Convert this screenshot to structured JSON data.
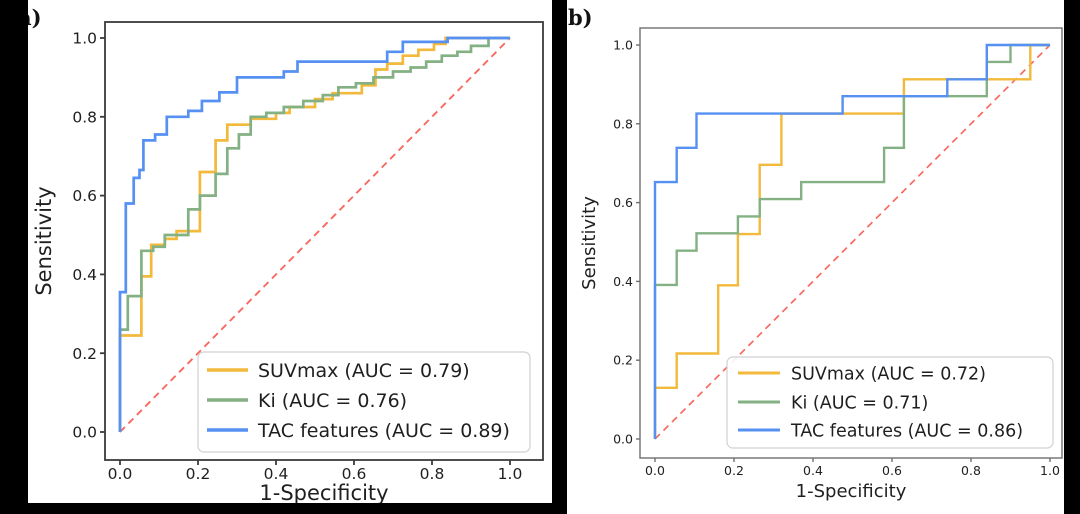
{
  "figure": {
    "background": "#ffffff",
    "crop_bar_color": "#000000",
    "text_color": "#1f1f1f"
  },
  "chart_data": [
    {
      "type": "line",
      "subtype": "roc",
      "panel_label": "a)",
      "xlabel": "1-Specificity",
      "ylabel": "Sensitivity",
      "xlim": [
        0.0,
        1.0
      ],
      "ylim": [
        0.0,
        1.0
      ],
      "grid": false,
      "legend_position": "lower right",
      "tick_values": [
        0.0,
        0.2,
        0.4,
        0.6,
        0.8,
        1.0
      ],
      "xtick_labels": [
        "0.0",
        "0.2",
        "0.4",
        "0.6",
        "0.8",
        "1.0"
      ],
      "ytick_labels": [
        "0.0",
        "0.2",
        "0.4",
        "0.6",
        "0.8",
        "1.0"
      ],
      "diagonal": {
        "name": "chance line",
        "color": "#f8695f",
        "style": "dashed",
        "from": [
          0,
          0
        ],
        "to": [
          1,
          1
        ]
      },
      "series": [
        {
          "name": "SUVmax",
          "auc": 0.79,
          "legend_label": "SUVmax (AUC = 0.79)",
          "color": "#f2b93b",
          "points": [
            [
              0,
              0
            ],
            [
              0,
              0.245
            ],
            [
              0.055,
              0.245
            ],
            [
              0.055,
              0.395
            ],
            [
              0.08,
              0.395
            ],
            [
              0.08,
              0.475
            ],
            [
              0.115,
              0.475
            ],
            [
              0.115,
              0.49
            ],
            [
              0.145,
              0.49
            ],
            [
              0.145,
              0.51
            ],
            [
              0.205,
              0.51
            ],
            [
              0.205,
              0.66
            ],
            [
              0.245,
              0.66
            ],
            [
              0.245,
              0.74
            ],
            [
              0.275,
              0.74
            ],
            [
              0.275,
              0.78
            ],
            [
              0.335,
              0.78
            ],
            [
              0.335,
              0.795
            ],
            [
              0.4,
              0.795
            ],
            [
              0.4,
              0.81
            ],
            [
              0.435,
              0.81
            ],
            [
              0.435,
              0.825
            ],
            [
              0.5,
              0.825
            ],
            [
              0.5,
              0.845
            ],
            [
              0.545,
              0.845
            ],
            [
              0.545,
              0.86
            ],
            [
              0.62,
              0.86
            ],
            [
              0.62,
              0.88
            ],
            [
              0.655,
              0.88
            ],
            [
              0.655,
              0.92
            ],
            [
              0.685,
              0.92
            ],
            [
              0.685,
              0.935
            ],
            [
              0.725,
              0.935
            ],
            [
              0.725,
              0.955
            ],
            [
              0.765,
              0.955
            ],
            [
              0.765,
              0.97
            ],
            [
              0.805,
              0.97
            ],
            [
              0.805,
              0.985
            ],
            [
              0.835,
              0.985
            ],
            [
              0.835,
              1
            ],
            [
              1,
              1
            ]
          ]
        },
        {
          "name": "Ki",
          "auc": 0.76,
          "legend_label": "Ki (AUC = 0.76)",
          "color": "#84b184",
          "points": [
            [
              0,
              0
            ],
            [
              0,
              0.26
            ],
            [
              0.02,
              0.26
            ],
            [
              0.02,
              0.345
            ],
            [
              0.055,
              0.345
            ],
            [
              0.055,
              0.46
            ],
            [
              0.085,
              0.46
            ],
            [
              0.085,
              0.47
            ],
            [
              0.115,
              0.47
            ],
            [
              0.115,
              0.5
            ],
            [
              0.175,
              0.5
            ],
            [
              0.175,
              0.565
            ],
            [
              0.205,
              0.565
            ],
            [
              0.205,
              0.6
            ],
            [
              0.245,
              0.6
            ],
            [
              0.245,
              0.655
            ],
            [
              0.275,
              0.655
            ],
            [
              0.275,
              0.72
            ],
            [
              0.305,
              0.72
            ],
            [
              0.305,
              0.755
            ],
            [
              0.335,
              0.755
            ],
            [
              0.335,
              0.8
            ],
            [
              0.375,
              0.8
            ],
            [
              0.375,
              0.81
            ],
            [
              0.42,
              0.81
            ],
            [
              0.42,
              0.825
            ],
            [
              0.47,
              0.825
            ],
            [
              0.47,
              0.84
            ],
            [
              0.52,
              0.84
            ],
            [
              0.52,
              0.855
            ],
            [
              0.56,
              0.855
            ],
            [
              0.56,
              0.875
            ],
            [
              0.605,
              0.875
            ],
            [
              0.605,
              0.885
            ],
            [
              0.65,
              0.885
            ],
            [
              0.65,
              0.9
            ],
            [
              0.7,
              0.9
            ],
            [
              0.7,
              0.915
            ],
            [
              0.745,
              0.915
            ],
            [
              0.745,
              0.925
            ],
            [
              0.785,
              0.925
            ],
            [
              0.785,
              0.94
            ],
            [
              0.825,
              0.94
            ],
            [
              0.825,
              0.955
            ],
            [
              0.865,
              0.955
            ],
            [
              0.865,
              0.965
            ],
            [
              0.9,
              0.965
            ],
            [
              0.9,
              0.98
            ],
            [
              0.945,
              0.98
            ],
            [
              0.945,
              1
            ],
            [
              1,
              1
            ]
          ]
        },
        {
          "name": "TAC features",
          "auc": 0.89,
          "legend_label": "TAC features (AUC = 0.89)",
          "color": "#5590f2",
          "points": [
            [
              0,
              0
            ],
            [
              0,
              0.355
            ],
            [
              0.015,
              0.355
            ],
            [
              0.015,
              0.58
            ],
            [
              0.035,
              0.58
            ],
            [
              0.035,
              0.645
            ],
            [
              0.05,
              0.645
            ],
            [
              0.05,
              0.665
            ],
            [
              0.06,
              0.665
            ],
            [
              0.06,
              0.74
            ],
            [
              0.09,
              0.74
            ],
            [
              0.09,
              0.755
            ],
            [
              0.12,
              0.755
            ],
            [
              0.12,
              0.8
            ],
            [
              0.175,
              0.8
            ],
            [
              0.175,
              0.815
            ],
            [
              0.21,
              0.815
            ],
            [
              0.21,
              0.84
            ],
            [
              0.255,
              0.84
            ],
            [
              0.255,
              0.862
            ],
            [
              0.3,
              0.862
            ],
            [
              0.3,
              0.9
            ],
            [
              0.42,
              0.9
            ],
            [
              0.42,
              0.915
            ],
            [
              0.455,
              0.915
            ],
            [
              0.455,
              0.94
            ],
            [
              0.685,
              0.94
            ],
            [
              0.685,
              0.965
            ],
            [
              0.725,
              0.965
            ],
            [
              0.725,
              0.99
            ],
            [
              0.84,
              0.99
            ],
            [
              0.84,
              1
            ],
            [
              1,
              1
            ]
          ]
        }
      ]
    },
    {
      "type": "line",
      "subtype": "roc",
      "panel_label": "b)",
      "xlabel": "1-Specificity",
      "ylabel": "Sensitivity",
      "xlim": [
        0.0,
        1.0
      ],
      "ylim": [
        0.0,
        1.0
      ],
      "grid": false,
      "legend_position": "lower right",
      "tick_values": [
        0.0,
        0.2,
        0.4,
        0.6,
        0.8,
        1.0
      ],
      "xtick_labels": [
        "0.0",
        "0.2",
        "0.4",
        "0.6",
        "0.8",
        "1.0"
      ],
      "ytick_labels": [
        "0.0",
        "0.2",
        "0.4",
        "0.6",
        "0.8",
        "1.0"
      ],
      "diagonal": {
        "name": "chance line",
        "color": "#f8695f",
        "style": "dashed",
        "from": [
          0,
          0
        ],
        "to": [
          1,
          1
        ]
      },
      "series": [
        {
          "name": "SUVmax",
          "auc": 0.72,
          "legend_label": "SUVmax (AUC = 0.72)",
          "color": "#f2b93b",
          "points": [
            [
              0,
              0
            ],
            [
              0,
              0.13
            ],
            [
              0.055,
              0.13
            ],
            [
              0.055,
              0.217
            ],
            [
              0.16,
              0.217
            ],
            [
              0.16,
              0.39
            ],
            [
              0.21,
              0.39
            ],
            [
              0.21,
              0.52
            ],
            [
              0.265,
              0.52
            ],
            [
              0.265,
              0.696
            ],
            [
              0.32,
              0.696
            ],
            [
              0.32,
              0.826
            ],
            [
              0.63,
              0.826
            ],
            [
              0.63,
              0.913
            ],
            [
              0.95,
              0.913
            ],
            [
              0.95,
              1
            ],
            [
              1,
              1
            ]
          ]
        },
        {
          "name": "Ki",
          "auc": 0.71,
          "legend_label": "Ki (AUC = 0.71)",
          "color": "#84b184",
          "points": [
            [
              0,
              0
            ],
            [
              0,
              0.391
            ],
            [
              0.055,
              0.391
            ],
            [
              0.055,
              0.478
            ],
            [
              0.105,
              0.478
            ],
            [
              0.105,
              0.522
            ],
            [
              0.21,
              0.522
            ],
            [
              0.21,
              0.565
            ],
            [
              0.265,
              0.565
            ],
            [
              0.265,
              0.609
            ],
            [
              0.37,
              0.609
            ],
            [
              0.37,
              0.652
            ],
            [
              0.58,
              0.652
            ],
            [
              0.58,
              0.739
            ],
            [
              0.63,
              0.739
            ],
            [
              0.63,
              0.87
            ],
            [
              0.84,
              0.87
            ],
            [
              0.84,
              0.957
            ],
            [
              0.9,
              0.957
            ],
            [
              0.9,
              1
            ],
            [
              1,
              1
            ]
          ]
        },
        {
          "name": "TAC features",
          "auc": 0.86,
          "legend_label": "TAC features (AUC = 0.86)",
          "color": "#5590f2",
          "points": [
            [
              0,
              0
            ],
            [
              0,
              0.652
            ],
            [
              0.055,
              0.652
            ],
            [
              0.055,
              0.739
            ],
            [
              0.105,
              0.739
            ],
            [
              0.105,
              0.826
            ],
            [
              0.475,
              0.826
            ],
            [
              0.475,
              0.87
            ],
            [
              0.74,
              0.87
            ],
            [
              0.74,
              0.913
            ],
            [
              0.84,
              0.913
            ],
            [
              0.84,
              1
            ],
            [
              1,
              1
            ]
          ]
        }
      ]
    }
  ]
}
